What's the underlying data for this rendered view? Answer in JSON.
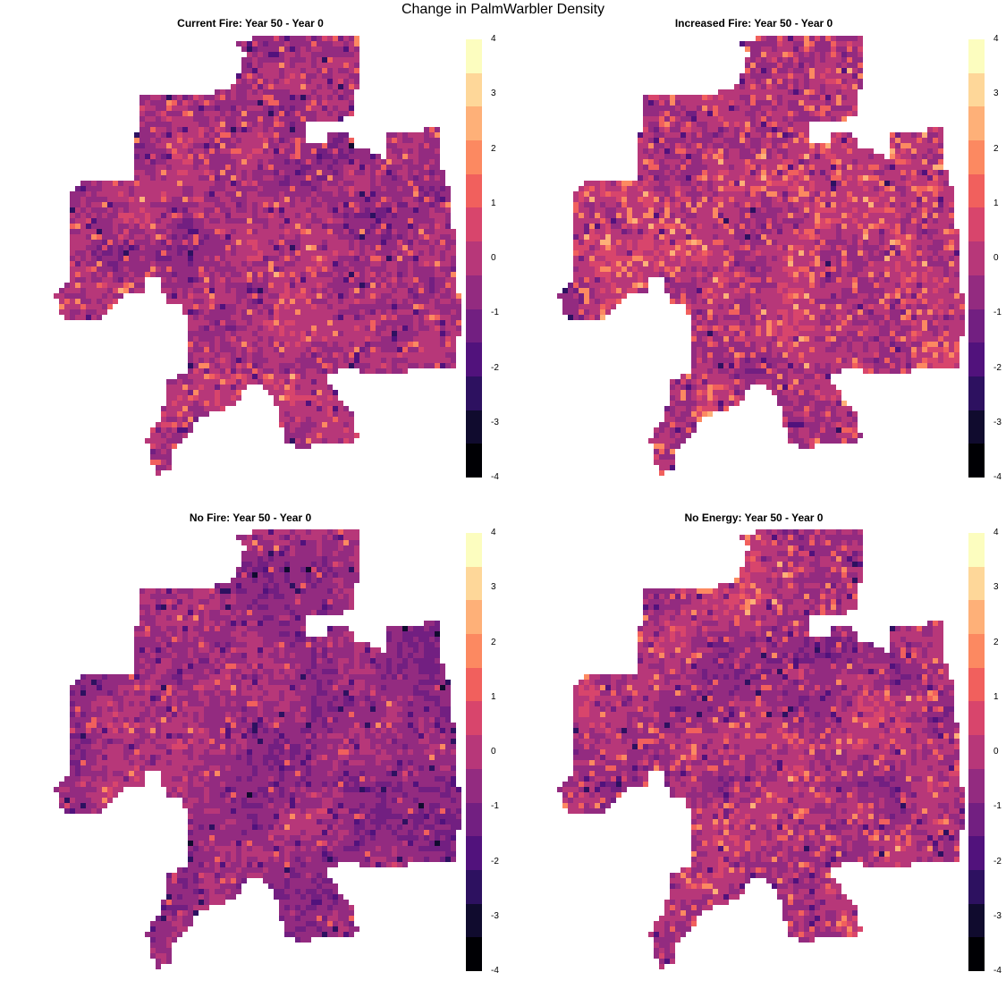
{
  "title": "Change in PalmWarbler Density",
  "colors": {
    "palette": [
      "#000004",
      "#100b2e",
      "#2d1160",
      "#51127c",
      "#721f81",
      "#932b80",
      "#b73779",
      "#d8456c",
      "#f1605d",
      "#fc8961",
      "#feb078",
      "#fed799",
      "#fcfdbf"
    ],
    "background": "#ffffff"
  },
  "chart_data": [
    {
      "type": "heatmap",
      "title": "Current Fire: Year 50 - Year 0",
      "legend_ticks": [
        "4",
        "3",
        "2",
        "1",
        "0",
        "-1",
        "-2",
        "-3",
        "-4"
      ],
      "value_range": [
        -4,
        4
      ],
      "legend_placement": "right"
    },
    {
      "type": "heatmap",
      "title": "Increased Fire: Year 50 - Year 0",
      "legend_ticks": [
        "4",
        "3",
        "2",
        "1",
        "0",
        "-1",
        "-2",
        "-3",
        "-4"
      ],
      "value_range": [
        -4,
        4
      ],
      "legend_placement": "right"
    },
    {
      "type": "heatmap",
      "title": "No Fire: Year 50 - Year 0",
      "legend_ticks": [
        "4",
        "3",
        "2",
        "1",
        "0",
        "-1",
        "-2",
        "-3",
        "-4"
      ],
      "value_range": [
        -4,
        4
      ],
      "legend_placement": "right"
    },
    {
      "type": "heatmap",
      "title": "No Energy: Year 50 - Year 0",
      "legend_ticks": [
        "4",
        "3",
        "2",
        "1",
        "0",
        "-1",
        "-2",
        "-3",
        "-4"
      ],
      "value_range": [
        -4,
        4
      ],
      "legend_placement": "right"
    }
  ]
}
